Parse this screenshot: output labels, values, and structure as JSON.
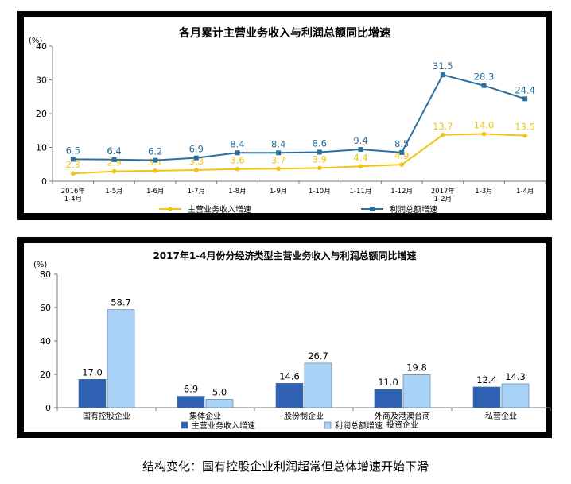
{
  "chart_data": [
    {
      "type": "line",
      "title": "各月累计主营业务收入与利润总额同比增速",
      "ylabel": "(%)",
      "ylim": [
        0,
        40
      ],
      "yticks": [
        0,
        10,
        20,
        30,
        40
      ],
      "grid": false,
      "legend_position": "bottom",
      "categories": [
        [
          "2016年",
          "1-4月"
        ],
        [
          "1-5月"
        ],
        [
          "1-6月"
        ],
        [
          "1-7月"
        ],
        [
          "1-8月"
        ],
        [
          "1-9月"
        ],
        [
          "1-10月"
        ],
        [
          "1-11月"
        ],
        [
          "1-12月"
        ],
        [
          "2017年",
          "1-2月"
        ],
        [
          "1-3月"
        ],
        [
          "1-4月"
        ]
      ],
      "series": [
        {
          "name": "主营业务收入增速",
          "color": "#f2c314",
          "values": [
            2.3,
            2.9,
            3.1,
            3.3,
            3.6,
            3.7,
            3.9,
            4.4,
            4.9,
            13.7,
            14.0,
            13.5
          ]
        },
        {
          "name": "利润总额增速",
          "color": "#2a6f9e",
          "values": [
            6.5,
            6.4,
            6.2,
            6.9,
            8.4,
            8.4,
            8.6,
            9.4,
            8.5,
            31.5,
            28.3,
            24.4
          ]
        }
      ]
    },
    {
      "type": "bar",
      "title": "2017年1-4月份分经济类型主营业务收入与利润总额同比增速",
      "ylabel": "(%)",
      "ylim": [
        0,
        80
      ],
      "yticks": [
        0,
        20,
        40,
        60,
        80
      ],
      "grid": false,
      "legend_position": "bottom",
      "categories": [
        [
          "国有控股企业"
        ],
        [
          "集体企业"
        ],
        [
          "股份制企业"
        ],
        [
          "外商及港澳台商",
          "投资企业"
        ],
        [
          "私营企业"
        ]
      ],
      "series": [
        {
          "name": "主营业务收入增速",
          "color": "#2f62b3",
          "values": [
            17.0,
            6.9,
            14.6,
            11.0,
            12.4
          ]
        },
        {
          "name": "利润总额增速",
          "color": "#a9d2f7",
          "values": [
            58.7,
            5.0,
            26.7,
            19.8,
            14.3
          ]
        }
      ]
    }
  ],
  "caption": "结构变化：国有控股企业利润超常但总体增速开始下滑"
}
